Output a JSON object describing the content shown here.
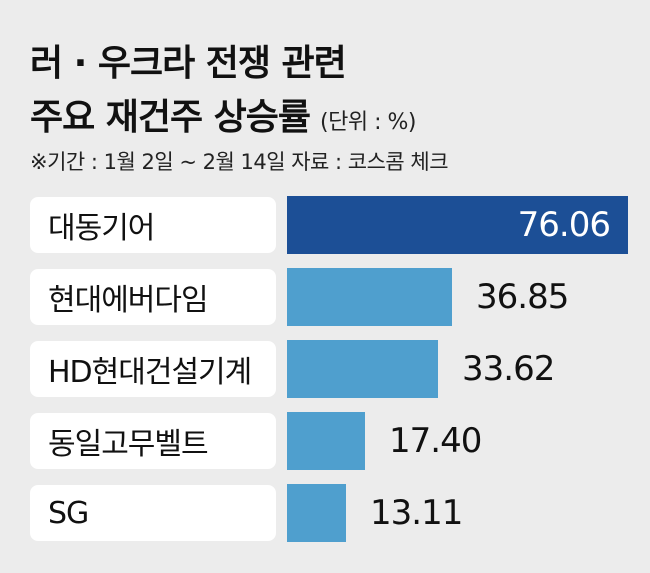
{
  "header": {
    "title_line1": "러 · 우크라 전쟁 관련",
    "title_line2": "주요 재건주 상승률",
    "unit": "(단위 : %)",
    "note": "※기간 : 1월 2일 ~ 2월 14일   자료 : 코스콤 체크"
  },
  "colors": {
    "highlight": "#1c4f96",
    "bar": "#4f9fce",
    "background": "#ececec"
  },
  "chart_data": {
    "type": "bar",
    "orientation": "horizontal",
    "categories": [
      "대동기어",
      "현대에버다임",
      "HD현대건설기계",
      "동일고무벨트",
      "SG"
    ],
    "values": [
      76.06,
      36.85,
      33.62,
      17.4,
      13.11
    ],
    "value_labels": [
      "76.06",
      "36.85",
      "33.62",
      "17.40",
      "13.11"
    ],
    "title": "러 · 우크라 전쟁 관련 주요 재건주 상승률",
    "unit": "(단위 : %)",
    "xlim": [
      0,
      76.06
    ],
    "grid": false,
    "legend": "none"
  }
}
